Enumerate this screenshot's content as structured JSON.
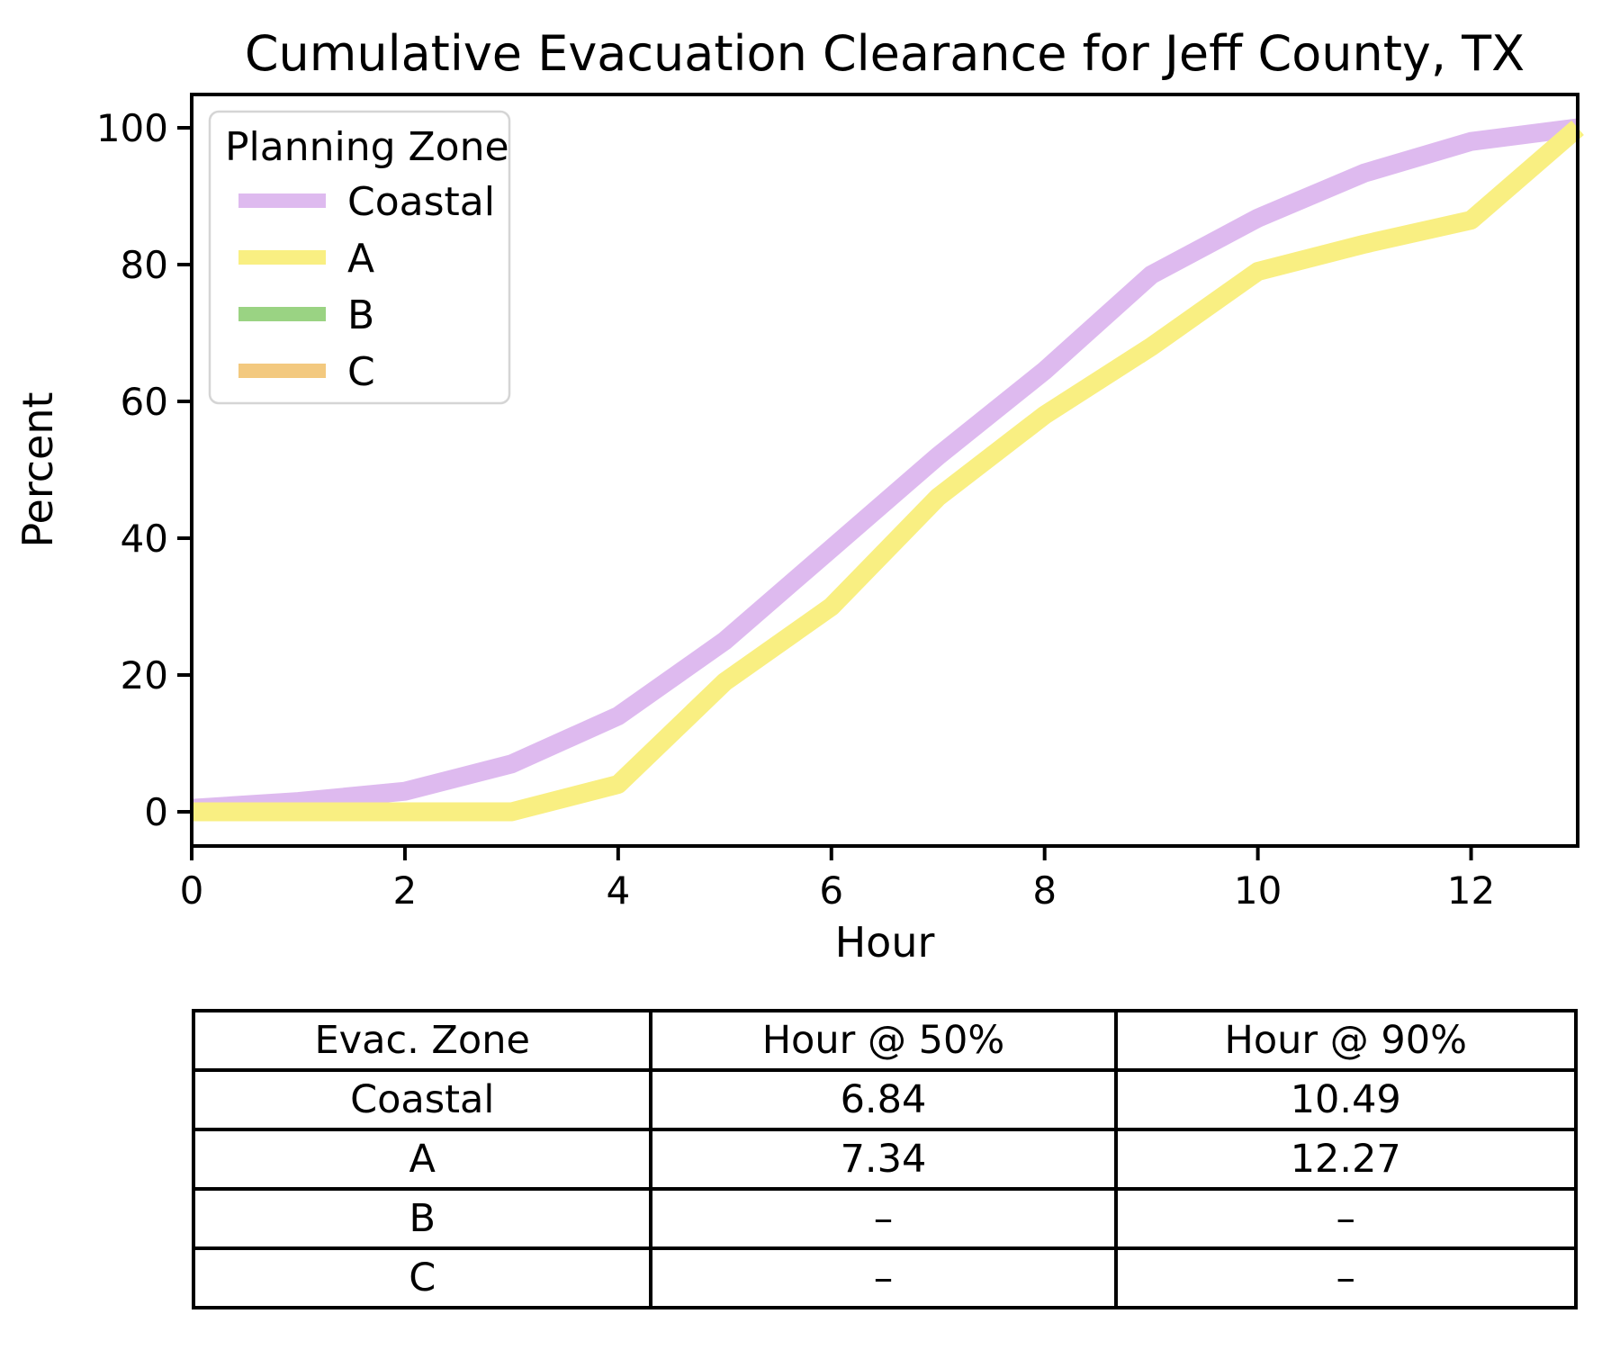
{
  "chart_data": {
    "type": "line",
    "title": "Cumulative Evacuation Clearance for Jeff County, TX",
    "xlabel": "Hour",
    "ylabel": "Percent",
    "xlim": [
      0,
      13
    ],
    "ylim": [
      0,
      100
    ],
    "xticks": [
      0,
      2,
      4,
      6,
      8,
      10,
      12
    ],
    "yticks": [
      0,
      20,
      40,
      60,
      80,
      100
    ],
    "grid": false,
    "legend_title": "Planning Zone",
    "legend_position": "upper-left",
    "x": [
      0,
      1,
      2,
      3,
      4,
      5,
      6,
      7,
      8,
      9,
      10,
      11,
      12,
      13
    ],
    "series": [
      {
        "name": "Coastal",
        "color": "#debaef",
        "values": [
          0.5,
          1.5,
          3,
          7,
          14,
          25,
          38.5,
          52,
          64.5,
          78.5,
          86.8,
          93.4,
          98,
          100
        ]
      },
      {
        "name": "A",
        "color": "#f9ef82",
        "values": [
          0,
          0,
          0,
          0,
          4,
          19,
          30,
          46,
          58,
          68,
          79,
          83,
          86.5,
          100
        ]
      },
      {
        "name": "B",
        "color": "#9ad383",
        "values": []
      },
      {
        "name": "C",
        "color": "#f3c97f",
        "values": []
      }
    ],
    "colors": {
      "text": "#000000",
      "spine": "#000000",
      "background": "#ffffff",
      "legend_border": "#d5d5d5"
    }
  },
  "table": {
    "headers": [
      "Evac. Zone",
      "Hour @ 50%",
      "Hour @ 90%"
    ],
    "rows": [
      [
        "Coastal",
        "6.84",
        "10.49"
      ],
      [
        "A",
        "7.34",
        "12.27"
      ],
      [
        "B",
        "–",
        "–"
      ],
      [
        "C",
        "–",
        "–"
      ]
    ]
  }
}
